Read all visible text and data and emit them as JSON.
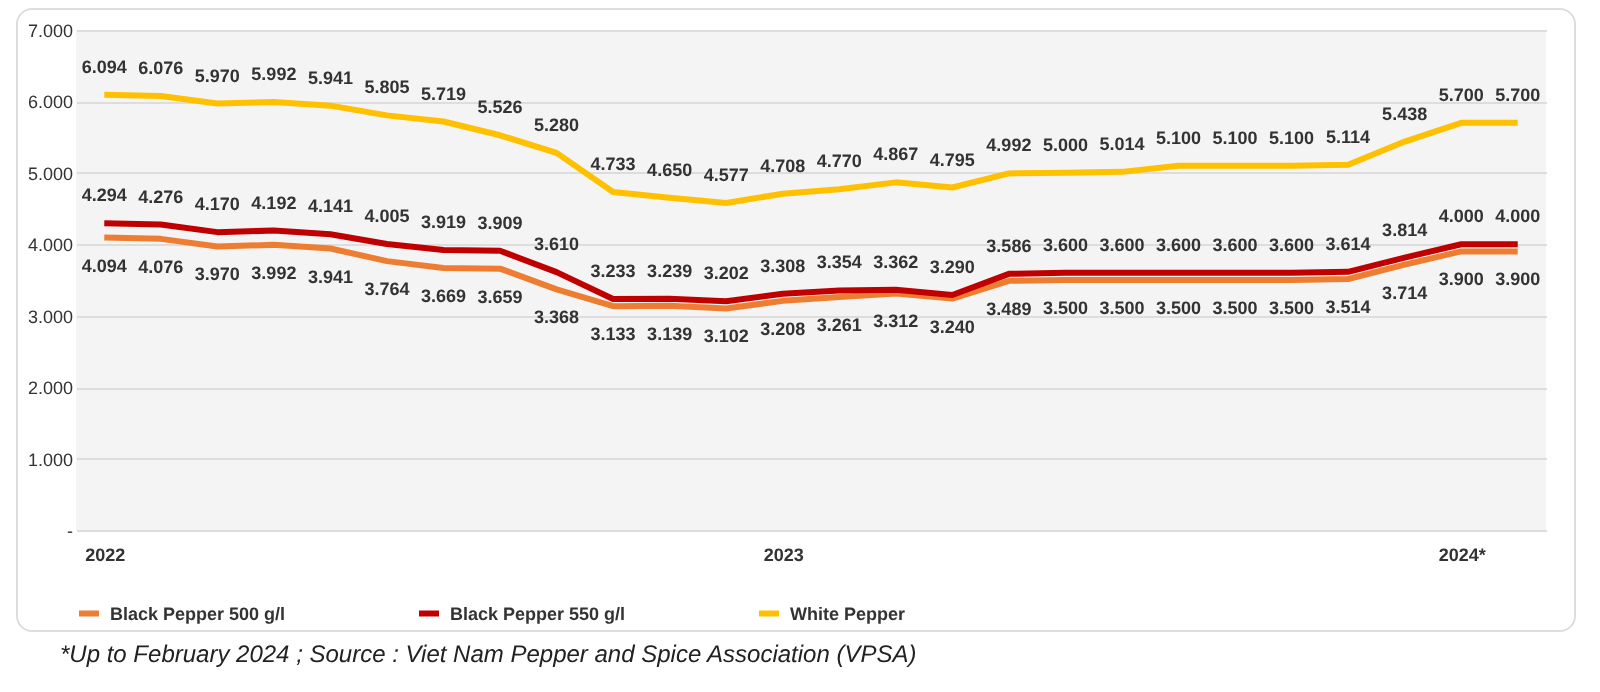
{
  "chart_data": {
    "type": "line",
    "categories": [
      "2022",
      null,
      null,
      null,
      null,
      null,
      null,
      null,
      null,
      null,
      null,
      null,
      "2023",
      null,
      null,
      null,
      null,
      null,
      null,
      null,
      null,
      null,
      null,
      null,
      "2024*",
      null
    ],
    "series": [
      {
        "name": "Black Pepper 500 g/l",
        "color": "#ed7d31",
        "values": [
          4094,
          4076,
          3970,
          3992,
          3941,
          3764,
          3669,
          3659,
          3368,
          3133,
          3139,
          3102,
          3208,
          3261,
          3312,
          3240,
          3489,
          3500,
          3500,
          3500,
          3500,
          3500,
          3514,
          3714,
          3900,
          3900
        ],
        "value_labels": [
          "4.094",
          "4.076",
          "3.970",
          "3.992",
          "3.941",
          "3.764",
          "3.669",
          "3.659",
          "3.368",
          "3.133",
          "3.139",
          "3.102",
          "3.208",
          "3.261",
          "3.312",
          "3.240",
          "3.489",
          "3.500",
          "3.500",
          "3.500",
          "3.500",
          "3.500",
          "3.514",
          "3.714",
          "3.900",
          "3.900"
        ]
      },
      {
        "name": "Black Pepper 550 g/l",
        "color": "#c00000",
        "values": [
          4294,
          4276,
          4170,
          4192,
          4141,
          4005,
          3919,
          3909,
          3610,
          3233,
          3239,
          3202,
          3308,
          3354,
          3362,
          3290,
          3586,
          3600,
          3600,
          3600,
          3600,
          3600,
          3614,
          3814,
          4000,
          4000
        ],
        "value_labels": [
          "4.294",
          "4.276",
          "4.170",
          "4.192",
          "4.141",
          "4.005",
          "3.919",
          "3.909",
          "3.610",
          "3.233",
          "3.239",
          "3.202",
          "3.308",
          "3.354",
          "3.362",
          "3.290",
          "3.586",
          "3.600",
          "3.600",
          "3.600",
          "3.600",
          "3.600",
          "3.614",
          "3.814",
          "4.000",
          "4.000"
        ]
      },
      {
        "name": "White Pepper",
        "color": "#ffc000",
        "values": [
          6094,
          6076,
          5970,
          5992,
          5941,
          5805,
          5719,
          5526,
          5280,
          4733,
          4650,
          4577,
          4708,
          4770,
          4867,
          4795,
          4992,
          5000,
          5014,
          5100,
          5100,
          5100,
          5114,
          5438,
          5700,
          5700
        ],
        "value_labels": [
          "6.094",
          "6.076",
          "5.970",
          "5.992",
          "5.941",
          "5.805",
          "5.719",
          "5.526",
          "5.280",
          "4.733",
          "4.650",
          "4.577",
          "4.708",
          "4.770",
          "4.867",
          "4.795",
          "4.992",
          "5.000",
          "5.014",
          "5.100",
          "5.100",
          "5.100",
          "5.114",
          "5.438",
          "5.700",
          "5.700"
        ]
      }
    ],
    "ylim": [
      0,
      7000
    ],
    "yticks": [
      {
        "value": 0,
        "label": "-"
      },
      {
        "value": 1000,
        "label": "1.000"
      },
      {
        "value": 2000,
        "label": "2.000"
      },
      {
        "value": 3000,
        "label": "3.000"
      },
      {
        "value": 4000,
        "label": "4.000"
      },
      {
        "value": 5000,
        "label": "5.000"
      },
      {
        "value": 6000,
        "label": "6.000"
      },
      {
        "value": 7000,
        "label": "7.000"
      }
    ],
    "grid": "y",
    "legend": "bottom",
    "line_style": "solid",
    "marker": "none",
    "annotations": [
      "*Up to February 2024 ; Source : Viet Nam Pepper and Spice Association (VPSA)"
    ]
  }
}
